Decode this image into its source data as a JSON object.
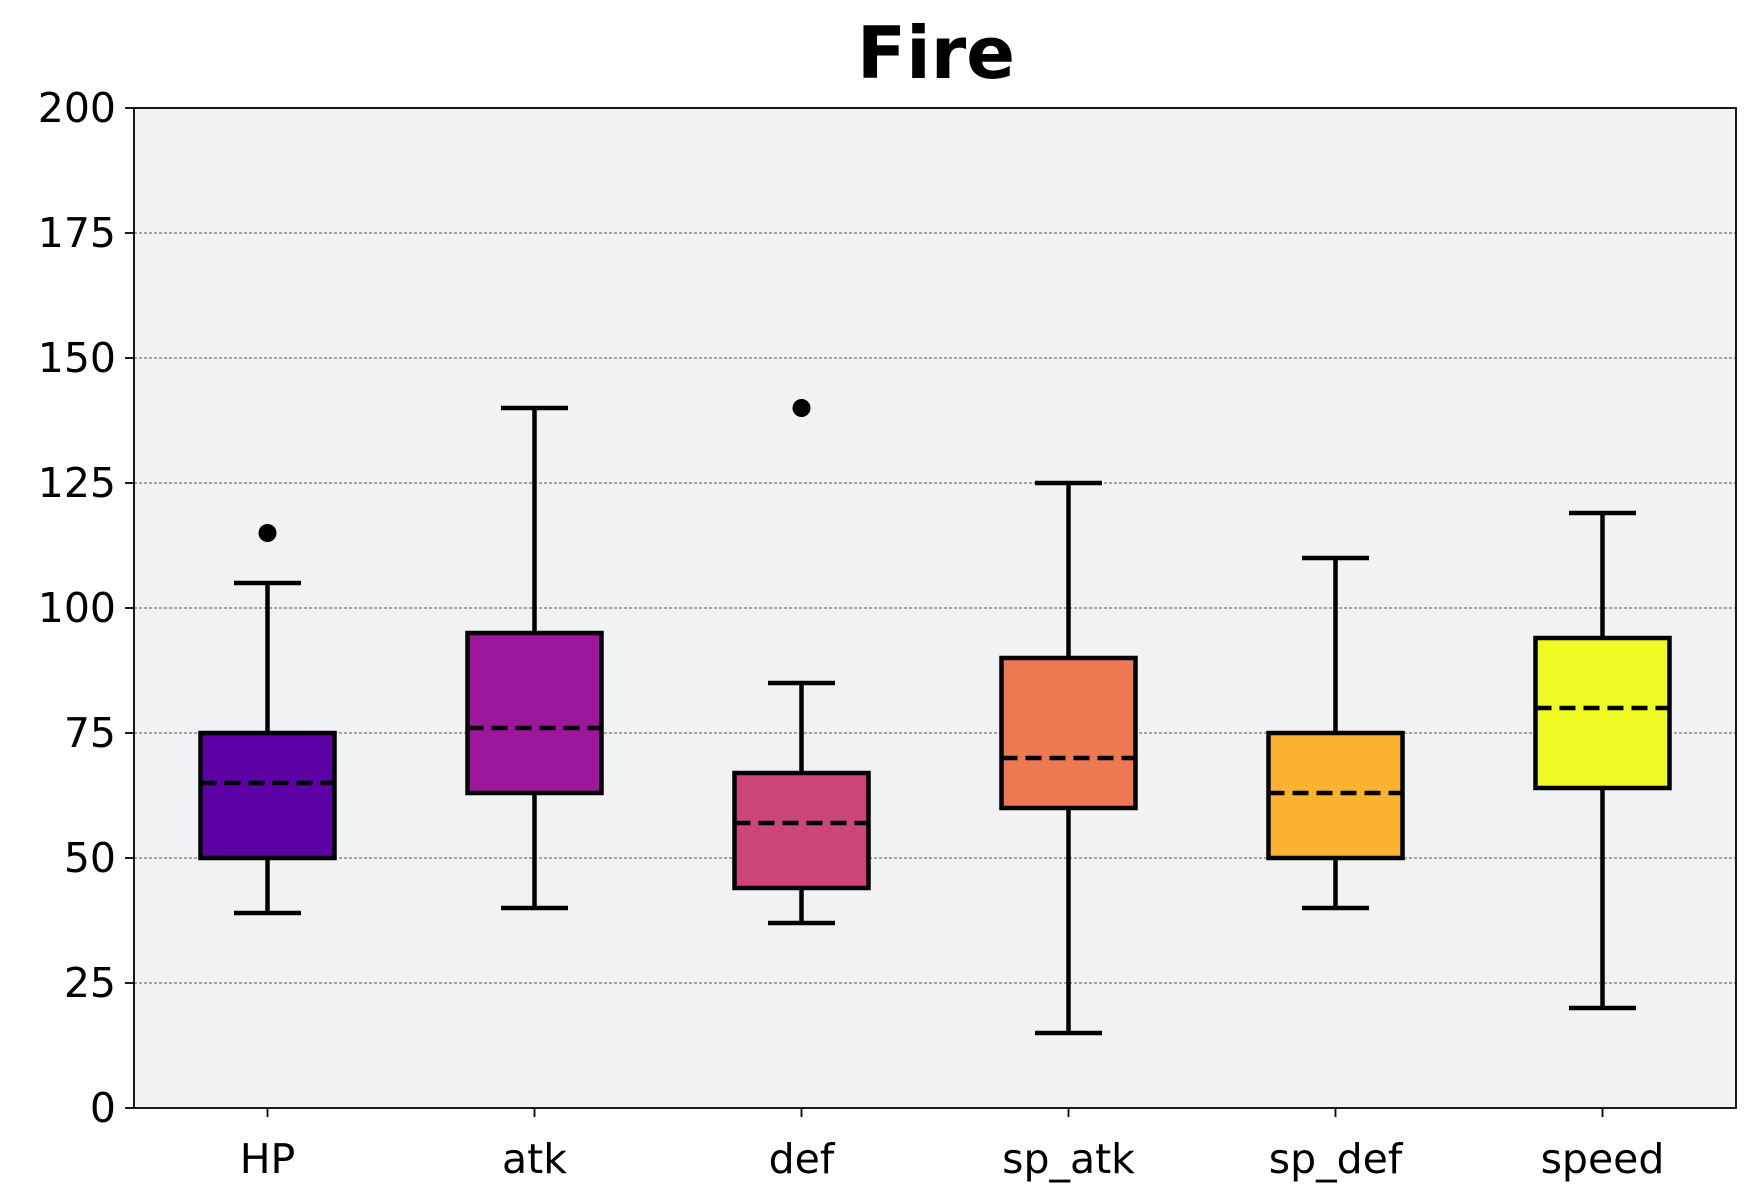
{
  "chart_data": {
    "type": "box",
    "title": "Fire",
    "xlabel": "",
    "ylabel": "",
    "ylim": [
      0,
      200
    ],
    "yticks": [
      0,
      25,
      50,
      75,
      100,
      125,
      150,
      175,
      200
    ],
    "grid": {
      "y": true,
      "x": false,
      "style": "dashed"
    },
    "plot_background": "#f1f2f4",
    "median_line_style": "dashed",
    "categories": [
      "HP",
      "atk",
      "def",
      "sp_atk",
      "sp_def",
      "speed"
    ],
    "boxes": [
      {
        "label": "HP",
        "whisker_low": 39,
        "q1": 50,
        "median": 65,
        "q3": 75,
        "whisker_high": 105,
        "outliers": [
          115
        ],
        "color": "#5c01a6"
      },
      {
        "label": "atk",
        "whisker_low": 40,
        "q1": 63,
        "median": 76,
        "q3": 95,
        "whisker_high": 140,
        "outliers": [],
        "color": "#9c179e"
      },
      {
        "label": "def",
        "whisker_low": 37,
        "q1": 44,
        "median": 57,
        "q3": 67,
        "whisker_high": 85,
        "outliers": [
          140
        ],
        "color": "#cc4778"
      },
      {
        "label": "sp_atk",
        "whisker_low": 15,
        "q1": 60,
        "median": 70,
        "q3": 90,
        "whisker_high": 125,
        "outliers": [],
        "color": "#ed7953"
      },
      {
        "label": "sp_def",
        "whisker_low": 40,
        "q1": 50,
        "median": 63,
        "q3": 75,
        "whisker_high": 110,
        "outliers": [],
        "color": "#fdb32f"
      },
      {
        "label": "speed",
        "whisker_low": 20,
        "q1": 64,
        "median": 80,
        "q3": 94,
        "whisker_high": 119,
        "outliers": [],
        "color": "#f0f921"
      }
    ]
  }
}
